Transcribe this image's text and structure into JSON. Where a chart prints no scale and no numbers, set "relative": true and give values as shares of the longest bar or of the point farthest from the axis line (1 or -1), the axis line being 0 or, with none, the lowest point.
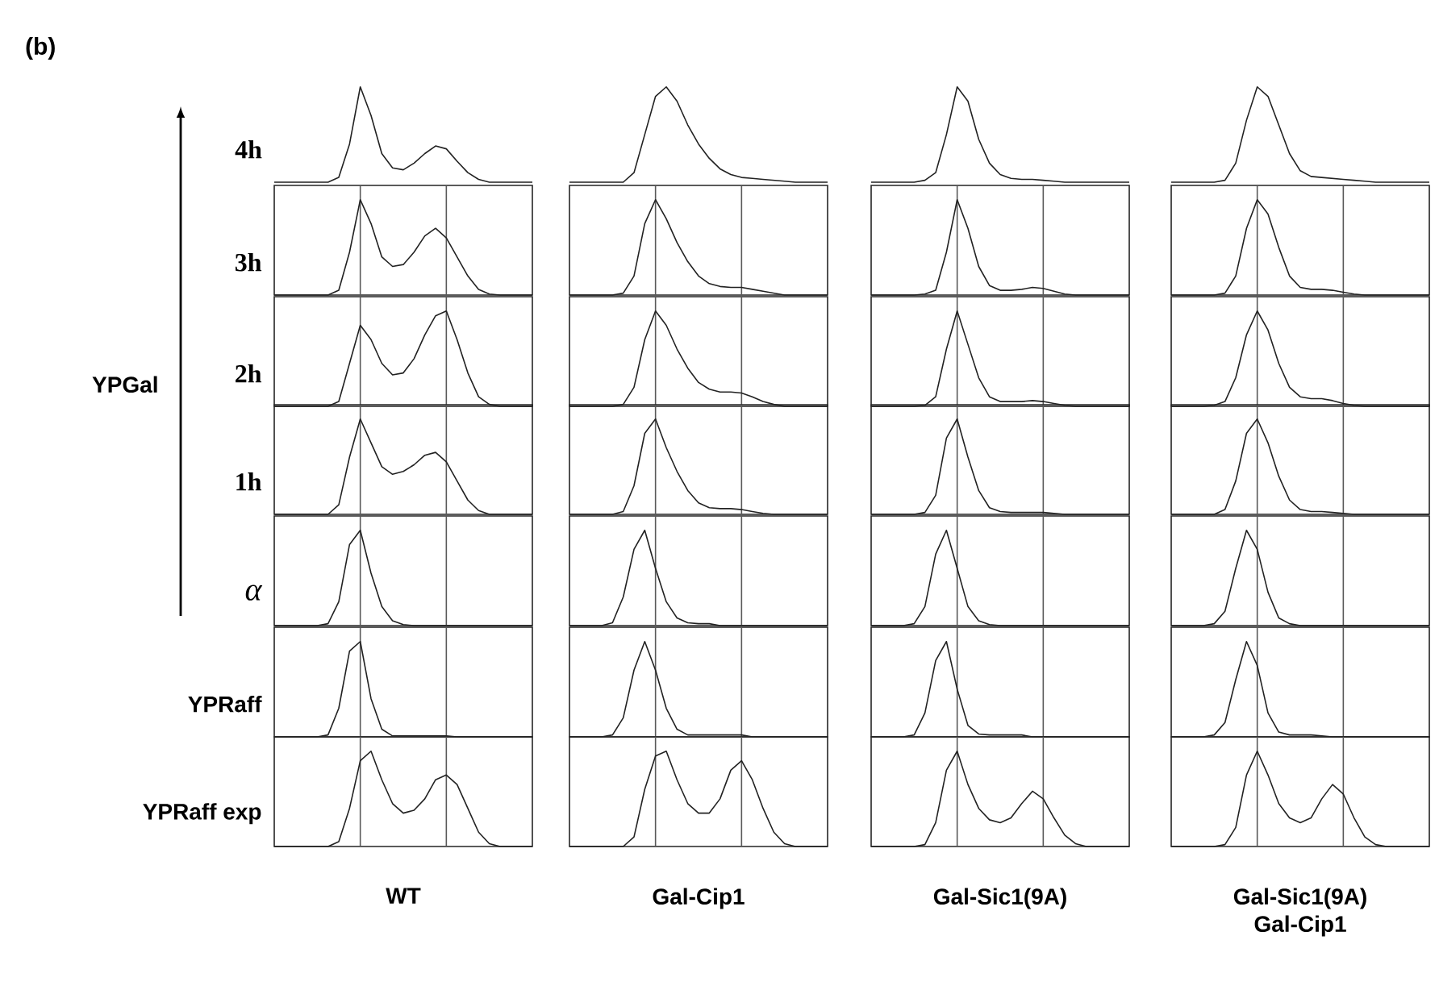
{
  "chart_data": [
    {
      "type": "line",
      "relative": true,
      "annotations": [
        "(b)"
      ],
      "ylabel": "4h",
      "categories": [
        null,
        null,
        null,
        null,
        null,
        null,
        null,
        null,
        null,
        null,
        null,
        null,
        null,
        null,
        null,
        null,
        null,
        null,
        null,
        null,
        null,
        null,
        null,
        null,
        null
      ],
      "series": [
        {
          "color": "#222222",
          "values": [
            0,
            0,
            0,
            0,
            0,
            0,
            0.05,
            0.4,
            1,
            0.7,
            0.3,
            0.15,
            0.13,
            0.2,
            0.3,
            0.38,
            0.35,
            0.22,
            0.1,
            0.03,
            0,
            0,
            0,
            0,
            0
          ]
        }
      ]
    },
    {
      "type": "line",
      "relative": true,
      "categories": [
        null,
        null,
        null,
        null,
        null,
        null,
        null,
        null,
        null,
        null,
        null,
        null,
        null,
        null,
        null,
        null,
        null,
        null,
        null,
        null,
        null,
        null,
        null,
        null,
        null
      ],
      "series": [
        {
          "color": "#222222",
          "values": [
            0,
            0,
            0,
            0,
            0,
            0,
            0.1,
            0.5,
            0.9,
            1,
            0.85,
            0.6,
            0.4,
            0.25,
            0.14,
            0.08,
            0.05,
            0.04,
            0.03,
            0.02,
            0.01,
            0,
            0,
            0,
            0
          ]
        }
      ]
    },
    {
      "type": "line",
      "relative": true,
      "categories": [
        null,
        null,
        null,
        null,
        null,
        null,
        null,
        null,
        null,
        null,
        null,
        null,
        null,
        null,
        null,
        null,
        null,
        null,
        null,
        null,
        null,
        null,
        null,
        null,
        null
      ],
      "series": [
        {
          "color": "#222222",
          "values": [
            0,
            0,
            0,
            0,
            0,
            0.02,
            0.1,
            0.5,
            1,
            0.85,
            0.45,
            0.2,
            0.08,
            0.04,
            0.03,
            0.03,
            0.02,
            0.01,
            0,
            0,
            0,
            0,
            0,
            0,
            0
          ]
        }
      ]
    },
    {
      "type": "line",
      "relative": true,
      "categories": [
        null,
        null,
        null,
        null,
        null,
        null,
        null,
        null,
        null,
        null,
        null,
        null,
        null,
        null,
        null,
        null,
        null,
        null,
        null,
        null,
        null,
        null,
        null,
        null,
        null
      ],
      "series": [
        {
          "color": "#222222",
          "values": [
            0,
            0,
            0,
            0,
            0,
            0.02,
            0.2,
            0.65,
            1,
            0.9,
            0.6,
            0.3,
            0.12,
            0.06,
            0.05,
            0.04,
            0.03,
            0.02,
            0.01,
            0,
            0,
            0,
            0,
            0,
            0
          ]
        }
      ]
    },
    {
      "type": "line",
      "relative": true,
      "ylabel": "3h",
      "categories": [
        null,
        null,
        null,
        null,
        null,
        null,
        null,
        null,
        null,
        null,
        null,
        null,
        null,
        null,
        null,
        null,
        null,
        null,
        null,
        null,
        null,
        null,
        null,
        null,
        null
      ],
      "series": [
        {
          "color": "#222222",
          "values": [
            0,
            0,
            0,
            0,
            0,
            0,
            0.05,
            0.45,
            1,
            0.75,
            0.4,
            0.3,
            0.32,
            0.45,
            0.62,
            0.7,
            0.6,
            0.4,
            0.2,
            0.06,
            0.01,
            0,
            0,
            0,
            0
          ]
        }
      ]
    },
    {
      "type": "line",
      "relative": true,
      "categories": [
        null,
        null,
        null,
        null,
        null,
        null,
        null,
        null,
        null,
        null,
        null,
        null,
        null,
        null,
        null,
        null,
        null,
        null,
        null,
        null,
        null,
        null,
        null,
        null,
        null
      ],
      "series": [
        {
          "color": "#222222",
          "values": [
            0,
            0,
            0,
            0,
            0,
            0.02,
            0.2,
            0.75,
            1,
            0.8,
            0.55,
            0.35,
            0.2,
            0.12,
            0.09,
            0.08,
            0.08,
            0.06,
            0.04,
            0.02,
            0,
            0,
            0,
            0,
            0
          ]
        }
      ]
    },
    {
      "type": "line",
      "relative": true,
      "categories": [
        null,
        null,
        null,
        null,
        null,
        null,
        null,
        null,
        null,
        null,
        null,
        null,
        null,
        null,
        null,
        null,
        null,
        null,
        null,
        null,
        null,
        null,
        null,
        null,
        null
      ],
      "series": [
        {
          "color": "#222222",
          "values": [
            0,
            0,
            0,
            0,
            0,
            0.01,
            0.05,
            0.45,
            1,
            0.7,
            0.3,
            0.1,
            0.05,
            0.05,
            0.06,
            0.08,
            0.07,
            0.04,
            0.01,
            0,
            0,
            0,
            0,
            0,
            0
          ]
        }
      ]
    },
    {
      "type": "line",
      "relative": true,
      "categories": [
        null,
        null,
        null,
        null,
        null,
        null,
        null,
        null,
        null,
        null,
        null,
        null,
        null,
        null,
        null,
        null,
        null,
        null,
        null,
        null,
        null,
        null,
        null,
        null,
        null
      ],
      "series": [
        {
          "color": "#222222",
          "values": [
            0,
            0,
            0,
            0,
            0,
            0.02,
            0.2,
            0.7,
            1,
            0.85,
            0.5,
            0.2,
            0.08,
            0.06,
            0.06,
            0.05,
            0.03,
            0.01,
            0,
            0,
            0,
            0,
            0,
            0,
            0
          ]
        }
      ]
    },
    {
      "type": "line",
      "relative": true,
      "ylabel": "2h",
      "annotations": [
        "YPGal"
      ],
      "categories": [
        null,
        null,
        null,
        null,
        null,
        null,
        null,
        null,
        null,
        null,
        null,
        null,
        null,
        null,
        null,
        null,
        null,
        null,
        null,
        null,
        null,
        null,
        null,
        null,
        null
      ],
      "series": [
        {
          "color": "#222222",
          "values": [
            0,
            0,
            0,
            0,
            0,
            0,
            0.05,
            0.45,
            0.85,
            0.7,
            0.45,
            0.33,
            0.35,
            0.5,
            0.75,
            0.95,
            1,
            0.7,
            0.35,
            0.1,
            0.02,
            0,
            0,
            0,
            0
          ]
        }
      ]
    },
    {
      "type": "line",
      "relative": true,
      "categories": [
        null,
        null,
        null,
        null,
        null,
        null,
        null,
        null,
        null,
        null,
        null,
        null,
        null,
        null,
        null,
        null,
        null,
        null,
        null,
        null,
        null,
        null,
        null,
        null,
        null
      ],
      "series": [
        {
          "color": "#222222",
          "values": [
            0,
            0,
            0,
            0,
            0,
            0.02,
            0.2,
            0.7,
            1,
            0.85,
            0.6,
            0.4,
            0.25,
            0.18,
            0.15,
            0.15,
            0.14,
            0.1,
            0.05,
            0.02,
            0,
            0,
            0,
            0,
            0
          ]
        }
      ]
    },
    {
      "type": "line",
      "relative": true,
      "categories": [
        null,
        null,
        null,
        null,
        null,
        null,
        null,
        null,
        null,
        null,
        null,
        null,
        null,
        null,
        null,
        null,
        null,
        null,
        null,
        null,
        null,
        null,
        null,
        null,
        null
      ],
      "series": [
        {
          "color": "#222222",
          "values": [
            0,
            0,
            0,
            0,
            0,
            0.01,
            0.1,
            0.6,
            1,
            0.65,
            0.3,
            0.1,
            0.05,
            0.05,
            0.05,
            0.06,
            0.05,
            0.03,
            0.01,
            0,
            0,
            0,
            0,
            0,
            0
          ]
        }
      ]
    },
    {
      "type": "line",
      "relative": true,
      "categories": [
        null,
        null,
        null,
        null,
        null,
        null,
        null,
        null,
        null,
        null,
        null,
        null,
        null,
        null,
        null,
        null,
        null,
        null,
        null,
        null,
        null,
        null,
        null,
        null,
        null
      ],
      "series": [
        {
          "color": "#222222",
          "values": [
            0,
            0,
            0,
            0,
            0.01,
            0.05,
            0.3,
            0.75,
            1,
            0.8,
            0.45,
            0.2,
            0.1,
            0.08,
            0.08,
            0.06,
            0.03,
            0.01,
            0,
            0,
            0,
            0,
            0,
            0,
            0
          ]
        }
      ]
    },
    {
      "type": "line",
      "relative": true,
      "ylabel": "1h",
      "categories": [
        null,
        null,
        null,
        null,
        null,
        null,
        null,
        null,
        null,
        null,
        null,
        null,
        null,
        null,
        null,
        null,
        null,
        null,
        null,
        null,
        null,
        null,
        null,
        null,
        null
      ],
      "series": [
        {
          "color": "#222222",
          "values": [
            0,
            0,
            0,
            0,
            0,
            0,
            0.1,
            0.6,
            1,
            0.75,
            0.5,
            0.42,
            0.45,
            0.52,
            0.62,
            0.65,
            0.55,
            0.35,
            0.15,
            0.04,
            0,
            0,
            0,
            0,
            0
          ]
        }
      ]
    },
    {
      "type": "line",
      "relative": true,
      "categories": [
        null,
        null,
        null,
        null,
        null,
        null,
        null,
        null,
        null,
        null,
        null,
        null,
        null,
        null,
        null,
        null,
        null,
        null,
        null,
        null,
        null,
        null,
        null,
        null,
        null
      ],
      "series": [
        {
          "color": "#222222",
          "values": [
            0,
            0,
            0,
            0,
            0,
            0.03,
            0.3,
            0.85,
            1,
            0.7,
            0.45,
            0.25,
            0.12,
            0.07,
            0.06,
            0.06,
            0.05,
            0.03,
            0.01,
            0,
            0,
            0,
            0,
            0,
            0
          ]
        }
      ]
    },
    {
      "type": "line",
      "relative": true,
      "categories": [
        null,
        null,
        null,
        null,
        null,
        null,
        null,
        null,
        null,
        null,
        null,
        null,
        null,
        null,
        null,
        null,
        null,
        null,
        null,
        null,
        null,
        null,
        null,
        null,
        null
      ],
      "series": [
        {
          "color": "#222222",
          "values": [
            0,
            0,
            0,
            0,
            0,
            0.02,
            0.2,
            0.8,
            1,
            0.6,
            0.25,
            0.07,
            0.03,
            0.02,
            0.02,
            0.02,
            0.02,
            0.01,
            0,
            0,
            0,
            0,
            0,
            0,
            0
          ]
        }
      ]
    },
    {
      "type": "line",
      "relative": true,
      "categories": [
        null,
        null,
        null,
        null,
        null,
        null,
        null,
        null,
        null,
        null,
        null,
        null,
        null,
        null,
        null,
        null,
        null,
        null,
        null,
        null,
        null,
        null,
        null,
        null,
        null
      ],
      "series": [
        {
          "color": "#222222",
          "values": [
            0,
            0,
            0,
            0,
            0,
            0.05,
            0.35,
            0.85,
            1,
            0.75,
            0.4,
            0.15,
            0.05,
            0.03,
            0.03,
            0.02,
            0.01,
            0,
            0,
            0,
            0,
            0,
            0,
            0,
            0
          ]
        }
      ]
    },
    {
      "type": "line",
      "relative": true,
      "ylabel": "α",
      "categories": [
        null,
        null,
        null,
        null,
        null,
        null,
        null,
        null,
        null,
        null,
        null,
        null,
        null,
        null,
        null,
        null,
        null,
        null,
        null,
        null,
        null,
        null,
        null,
        null,
        null
      ],
      "series": [
        {
          "color": "#222222",
          "values": [
            0,
            0,
            0,
            0,
            0,
            0.02,
            0.25,
            0.85,
            1,
            0.55,
            0.2,
            0.05,
            0.01,
            0,
            0,
            0,
            0,
            0,
            0,
            0,
            0,
            0,
            0,
            0,
            0
          ]
        }
      ]
    },
    {
      "type": "line",
      "relative": true,
      "categories": [
        null,
        null,
        null,
        null,
        null,
        null,
        null,
        null,
        null,
        null,
        null,
        null,
        null,
        null,
        null,
        null,
        null,
        null,
        null,
        null,
        null,
        null,
        null,
        null,
        null
      ],
      "series": [
        {
          "color": "#222222",
          "values": [
            0,
            0,
            0,
            0,
            0.03,
            0.3,
            0.8,
            1,
            0.6,
            0.25,
            0.08,
            0.03,
            0.02,
            0.02,
            0,
            0,
            0,
            0,
            0,
            0,
            0,
            0,
            0,
            0,
            0
          ]
        }
      ]
    },
    {
      "type": "line",
      "relative": true,
      "categories": [
        null,
        null,
        null,
        null,
        null,
        null,
        null,
        null,
        null,
        null,
        null,
        null,
        null,
        null,
        null,
        null,
        null,
        null,
        null,
        null,
        null,
        null,
        null,
        null,
        null
      ],
      "series": [
        {
          "color": "#222222",
          "values": [
            0,
            0,
            0,
            0,
            0.02,
            0.2,
            0.75,
            1,
            0.6,
            0.2,
            0.05,
            0.01,
            0,
            0,
            0,
            0,
            0,
            0,
            0,
            0,
            0,
            0,
            0,
            0,
            0
          ]
        }
      ]
    },
    {
      "type": "line",
      "relative": true,
      "categories": [
        null,
        null,
        null,
        null,
        null,
        null,
        null,
        null,
        null,
        null,
        null,
        null,
        null,
        null,
        null,
        null,
        null,
        null,
        null,
        null,
        null,
        null,
        null,
        null,
        null
      ],
      "series": [
        {
          "color": "#222222",
          "values": [
            0,
            0,
            0,
            0,
            0.02,
            0.15,
            0.6,
            1,
            0.8,
            0.35,
            0.08,
            0.02,
            0,
            0,
            0,
            0,
            0,
            0,
            0,
            0,
            0,
            0,
            0,
            0,
            0
          ]
        }
      ]
    },
    {
      "type": "line",
      "relative": true,
      "ylabel": "YPRaff",
      "categories": [
        null,
        null,
        null,
        null,
        null,
        null,
        null,
        null,
        null,
        null,
        null,
        null,
        null,
        null,
        null,
        null,
        null,
        null,
        null,
        null,
        null,
        null,
        null,
        null,
        null
      ],
      "series": [
        {
          "color": "#222222",
          "values": [
            0,
            0,
            0,
            0,
            0,
            0.02,
            0.3,
            0.9,
            1,
            0.4,
            0.08,
            0.01,
            0.01,
            0.01,
            0.01,
            0.01,
            0.01,
            0,
            0,
            0,
            0,
            0,
            0,
            0,
            0
          ]
        }
      ]
    },
    {
      "type": "line",
      "relative": true,
      "categories": [
        null,
        null,
        null,
        null,
        null,
        null,
        null,
        null,
        null,
        null,
        null,
        null,
        null,
        null,
        null,
        null,
        null,
        null,
        null,
        null,
        null,
        null,
        null,
        null,
        null
      ],
      "series": [
        {
          "color": "#222222",
          "values": [
            0,
            0,
            0,
            0,
            0.02,
            0.2,
            0.7,
            1,
            0.7,
            0.3,
            0.08,
            0.02,
            0.02,
            0.02,
            0.02,
            0.02,
            0.02,
            0,
            0,
            0,
            0,
            0,
            0,
            0,
            0
          ]
        }
      ]
    },
    {
      "type": "line",
      "relative": true,
      "categories": [
        null,
        null,
        null,
        null,
        null,
        null,
        null,
        null,
        null,
        null,
        null,
        null,
        null,
        null,
        null,
        null,
        null,
        null,
        null,
        null,
        null,
        null,
        null,
        null,
        null
      ],
      "series": [
        {
          "color": "#222222",
          "values": [
            0,
            0,
            0,
            0,
            0.02,
            0.25,
            0.8,
            1,
            0.5,
            0.12,
            0.03,
            0.02,
            0.02,
            0.02,
            0.02,
            0,
            0,
            0,
            0,
            0,
            0,
            0,
            0,
            0,
            0
          ]
        }
      ]
    },
    {
      "type": "line",
      "relative": true,
      "categories": [
        null,
        null,
        null,
        null,
        null,
        null,
        null,
        null,
        null,
        null,
        null,
        null,
        null,
        null,
        null,
        null,
        null,
        null,
        null,
        null,
        null,
        null,
        null,
        null,
        null
      ],
      "series": [
        {
          "color": "#222222",
          "values": [
            0,
            0,
            0,
            0,
            0.02,
            0.15,
            0.6,
            1,
            0.75,
            0.25,
            0.05,
            0.02,
            0.02,
            0.02,
            0.01,
            0,
            0,
            0,
            0,
            0,
            0,
            0,
            0,
            0,
            0
          ]
        }
      ]
    },
    {
      "type": "line",
      "relative": true,
      "ylabel": "YPRaff exp",
      "xlabel": "WT",
      "categories": [
        null,
        null,
        null,
        null,
        null,
        null,
        null,
        null,
        null,
        null,
        null,
        null,
        null,
        null,
        null,
        null,
        null,
        null,
        null,
        null,
        null,
        null,
        null,
        null,
        null
      ],
      "series": [
        {
          "color": "#222222",
          "values": [
            0,
            0,
            0,
            0,
            0,
            0,
            0.05,
            0.4,
            0.9,
            1,
            0.7,
            0.45,
            0.35,
            0.38,
            0.5,
            0.7,
            0.75,
            0.65,
            0.4,
            0.15,
            0.03,
            0,
            0,
            0,
            0
          ]
        }
      ]
    },
    {
      "type": "line",
      "relative": true,
      "xlabel": "Gal-Cip1",
      "categories": [
        null,
        null,
        null,
        null,
        null,
        null,
        null,
        null,
        null,
        null,
        null,
        null,
        null,
        null,
        null,
        null,
        null,
        null,
        null,
        null,
        null,
        null,
        null,
        null,
        null
      ],
      "series": [
        {
          "color": "#222222",
          "values": [
            0,
            0,
            0,
            0,
            0,
            0,
            0.1,
            0.6,
            0.95,
            1,
            0.7,
            0.45,
            0.35,
            0.35,
            0.5,
            0.8,
            0.9,
            0.7,
            0.4,
            0.15,
            0.03,
            0,
            0,
            0,
            0
          ]
        }
      ]
    },
    {
      "type": "line",
      "relative": true,
      "xlabel": "Gal-Sic1(9A)",
      "categories": [
        null,
        null,
        null,
        null,
        null,
        null,
        null,
        null,
        null,
        null,
        null,
        null,
        null,
        null,
        null,
        null,
        null,
        null,
        null,
        null,
        null,
        null,
        null,
        null,
        null
      ],
      "series": [
        {
          "color": "#222222",
          "values": [
            0,
            0,
            0,
            0,
            0,
            0.02,
            0.25,
            0.8,
            1,
            0.65,
            0.4,
            0.28,
            0.25,
            0.3,
            0.45,
            0.58,
            0.5,
            0.3,
            0.12,
            0.03,
            0,
            0,
            0,
            0,
            0
          ]
        }
      ]
    },
    {
      "type": "line",
      "relative": true,
      "xlabel": "Gal-Sic1(9A) Gal-Cip1",
      "categories": [
        null,
        null,
        null,
        null,
        null,
        null,
        null,
        null,
        null,
        null,
        null,
        null,
        null,
        null,
        null,
        null,
        null,
        null,
        null,
        null,
        null,
        null,
        null,
        null,
        null
      ],
      "series": [
        {
          "color": "#222222",
          "values": [
            0,
            0,
            0,
            0,
            0,
            0.02,
            0.2,
            0.75,
            1,
            0.75,
            0.45,
            0.3,
            0.25,
            0.3,
            0.5,
            0.65,
            0.55,
            0.3,
            0.1,
            0.02,
            0,
            0,
            0,
            0,
            0
          ]
        }
      ]
    }
  ]
}
